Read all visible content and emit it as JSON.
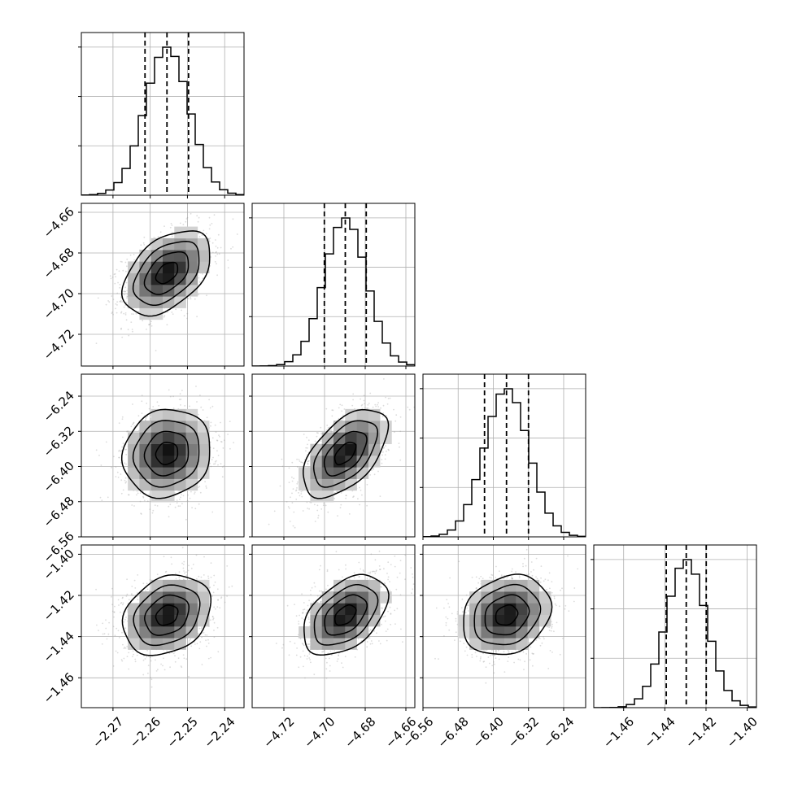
{
  "chart_data": {
    "type": "corner",
    "variables": [
      {
        "ticks": [
          -2.27,
          -2.26,
          -2.25,
          -2.24
        ],
        "tick_labels": [
          "−2.27",
          "−2.26",
          "−2.25",
          "−2.24"
        ]
      },
      {
        "ticks": [
          -4.72,
          -4.7,
          -4.68,
          -4.66
        ],
        "tick_labels": [
          "−4.72",
          "−4.70",
          "−4.68",
          "−4.66"
        ]
      },
      {
        "ticks": [
          -6.56,
          -6.48,
          -6.4,
          -6.32,
          -6.24
        ],
        "tick_labels": [
          "−6.56",
          "−6.48",
          "−6.40",
          "−6.32",
          "−6.24"
        ]
      },
      {
        "ticks": [
          -1.46,
          -1.44,
          -1.42,
          -1.4
        ],
        "tick_labels": [
          "−1.46",
          "−1.44",
          "−1.42",
          "−1.40"
        ]
      }
    ],
    "axis_ranges": [
      [
        -2.2785,
        -2.2348
      ],
      [
        -4.7356,
        -4.6556
      ],
      [
        -6.56,
        -6.19
      ],
      [
        -1.4745,
        -1.3955
      ]
    ],
    "means": [
      -2.2555,
      -4.6898,
      -6.37,
      -1.4296
    ],
    "sigmas": [
      0.0059,
      0.0104,
      0.0502,
      0.0097
    ],
    "quantiles": [
      [
        -2.2614,
        -2.2555,
        -2.2497
      ],
      [
        -4.7001,
        -4.6898,
        -4.6795
      ],
      [
        -6.42,
        -6.37,
        -6.32
      ],
      [
        -1.4393,
        -1.4296,
        -1.4199
      ]
    ],
    "correlations": {
      "0-1": 0.45,
      "0-2": 0.1,
      "1-2": 0.55,
      "0-3": 0.25,
      "1-3": 0.45,
      "2-3": 0.2
    },
    "histogram_bins": 20,
    "grid": true,
    "colors": {
      "line": "#000000",
      "points": "#9a9a9a",
      "grid": "#b0b0b0"
    }
  }
}
